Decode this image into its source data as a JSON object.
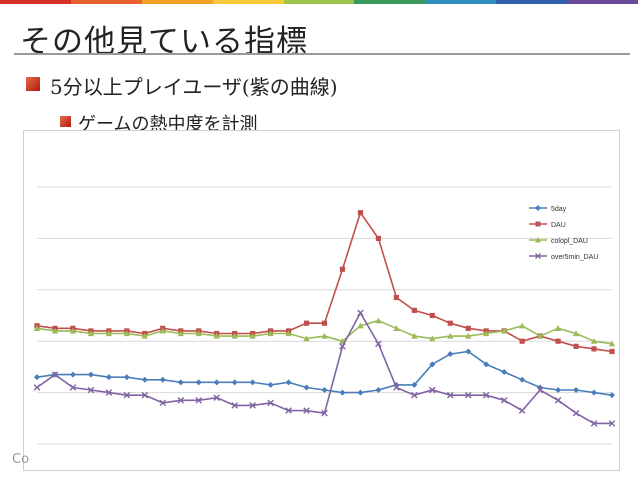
{
  "slide": {
    "title": "その他見ている指標",
    "bullet_1": "5分以上プレイユーザ(紫の曲線)",
    "bullet_2": "ゲームの熱中度を計測",
    "copyright": "Co",
    "accent_colors": [
      "#d6322a",
      "#e8602c",
      "#f2a12b",
      "#f5c93a",
      "#9cc54a",
      "#3a9a5b",
      "#2e8fbf",
      "#2f5fa6",
      "#6a4a9c"
    ]
  },
  "chart_data": {
    "type": "line",
    "title": "",
    "xlabel": "",
    "ylabel": "",
    "x": [
      1,
      2,
      3,
      4,
      5,
      6,
      7,
      8,
      9,
      10,
      11,
      12,
      13,
      14,
      15,
      16,
      17,
      18,
      19,
      20,
      21,
      22,
      23,
      24,
      25,
      26,
      27,
      28,
      29,
      30,
      31,
      32,
      33
    ],
    "ylim": [
      0,
      100
    ],
    "grid": true,
    "legend_position": "right",
    "series": [
      {
        "name": "5day",
        "color": "#4a7ebb",
        "marker": "diamond",
        "values": [
          26,
          27,
          27,
          27,
          26,
          26,
          25,
          25,
          24,
          24,
          24,
          24,
          24,
          23,
          24,
          22,
          21,
          20,
          20,
          21,
          23,
          23,
          31,
          35,
          36,
          31,
          28,
          25,
          22,
          21,
          21,
          20,
          19
        ]
      },
      {
        "name": "DAU",
        "color": "#c0504d",
        "marker": "square",
        "values": [
          46,
          45,
          45,
          44,
          44,
          44,
          43,
          45,
          44,
          44,
          43,
          43,
          43,
          44,
          44,
          47,
          47,
          68,
          90,
          80,
          57,
          52,
          50,
          47,
          45,
          44,
          44,
          40,
          42,
          40,
          38,
          37,
          36
        ]
      },
      {
        "name": "colopl_DAU",
        "color": "#9bbb59",
        "marker": "triangle",
        "values": [
          45,
          44,
          44,
          43,
          43,
          43,
          42,
          44,
          43,
          43,
          42,
          42,
          42,
          43,
          43,
          41,
          42,
          40,
          46,
          48,
          45,
          42,
          41,
          42,
          42,
          43,
          44,
          46,
          42,
          45,
          43,
          40,
          39
        ]
      },
      {
        "name": "over5min_DAU",
        "color": "#8064a2",
        "marker": "x",
        "values": [
          22,
          27,
          22,
          21,
          20,
          19,
          19,
          16,
          17,
          17,
          18,
          15,
          15,
          16,
          13,
          13,
          12,
          38,
          51,
          39,
          22,
          19,
          21,
          19,
          19,
          19,
          17,
          13,
          21,
          17,
          12,
          8,
          8
        ]
      }
    ]
  }
}
